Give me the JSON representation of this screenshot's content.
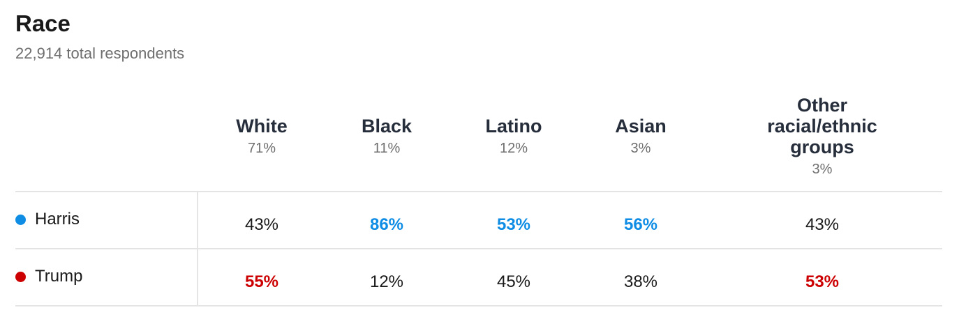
{
  "title": "Race",
  "subtitle": "22,914 total respondents",
  "colors": {
    "harris": "#0f8de5",
    "trump": "#cc0000",
    "neutral": "#1a1a1a"
  },
  "columns": [
    {
      "label": "White",
      "share": "71%"
    },
    {
      "label": "Black",
      "share": "11%"
    },
    {
      "label": "Latino",
      "share": "12%"
    },
    {
      "label": "Asian",
      "share": "3%"
    },
    {
      "label": "Other\nracial/ethnic\ngroups",
      "share": "3%"
    }
  ],
  "rows": [
    {
      "name": "Harris",
      "color": "#0f8de5",
      "values": [
        "43%",
        "86%",
        "53%",
        "56%",
        "43%"
      ]
    },
    {
      "name": "Trump",
      "color": "#cc0000",
      "values": [
        "55%",
        "12%",
        "45%",
        "38%",
        "53%"
      ]
    }
  ],
  "chart_data": {
    "type": "table",
    "title": "Race",
    "subtitle": "22,914 total respondents",
    "categories": [
      "White",
      "Black",
      "Latino",
      "Asian",
      "Other racial/ethnic groups"
    ],
    "category_share": [
      71,
      11,
      12,
      3,
      3
    ],
    "series": [
      {
        "name": "Harris",
        "values": [
          43,
          86,
          53,
          56,
          43
        ]
      },
      {
        "name": "Trump",
        "values": [
          55,
          12,
          45,
          38,
          53
        ]
      }
    ]
  }
}
